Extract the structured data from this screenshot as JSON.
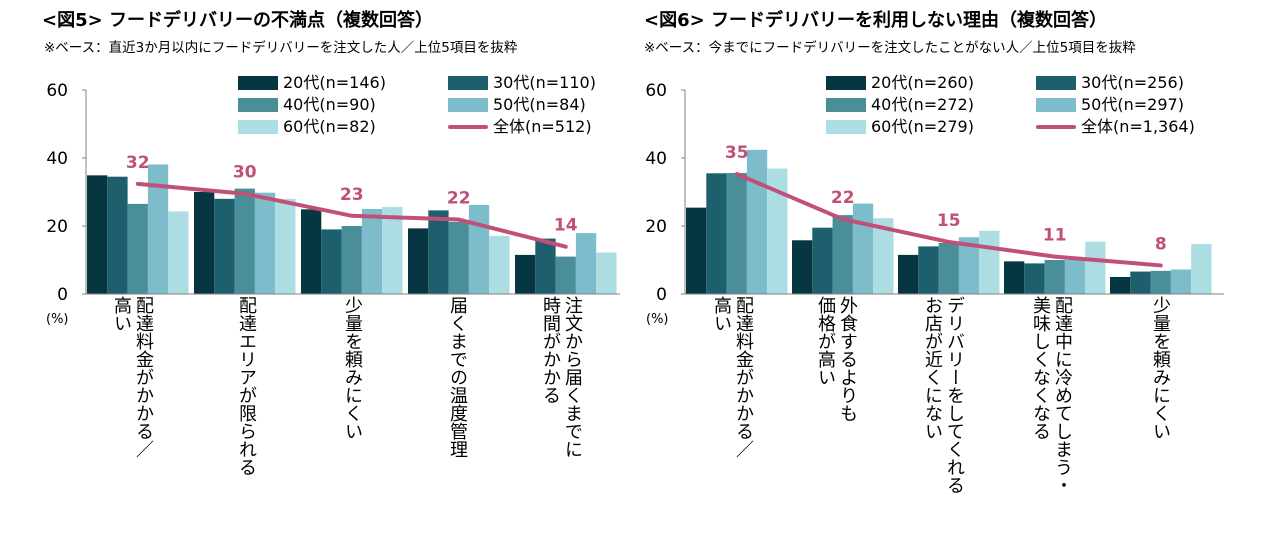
{
  "colors": {
    "series": [
      "#063642",
      "#1d5f6d",
      "#4a8e99",
      "#7dbccb",
      "#acdde3"
    ],
    "total": "#c05077",
    "axis": "#808080"
  },
  "left": {
    "title": "<図5> フードデリバリーの不満点（複数回答）",
    "subtitle": "※ベース：直近3か月以内にフードデリバリーを注文した人／上位5項目を抜粋",
    "pct_label": "(%)"
  },
  "right": {
    "title": "<図6> フードデリバリーを利用しない理由（複数回答）",
    "subtitle": "※ベース：今までにフードデリバリーを注文したことがない人／上位5項目を抜粋",
    "pct_label": "(%)"
  },
  "chart_data": [
    {
      "type": "bar",
      "title": "<図5> フードデリバリーの不満点（複数回答）",
      "ylabel": "(%)",
      "ylim": [
        0,
        60
      ],
      "yticks": [
        0,
        20,
        40,
        60
      ],
      "categories": [
        "配達料金がかかる／\n高い",
        "配達エリアが限られる",
        "少量を頼みにくい",
        "届くまでの温度管理",
        "注文から届くまでに\n時間がかかる"
      ],
      "series": [
        {
          "name": "20代(n=146)",
          "values": [
            34.9,
            30.0,
            24.9,
            19.3,
            11.5
          ]
        },
        {
          "name": "30代(n=110)",
          "values": [
            34.5,
            28.0,
            19.0,
            24.6,
            16.3
          ]
        },
        {
          "name": "40代(n=90)",
          "values": [
            26.5,
            31.0,
            20.0,
            21.2,
            11.0
          ]
        },
        {
          "name": "50代(n=84)",
          "values": [
            38.1,
            29.8,
            25.0,
            26.2,
            17.9
          ]
        },
        {
          "name": "60代(n=82)",
          "values": [
            24.3,
            28.0,
            25.6,
            17.1,
            12.2
          ]
        }
      ],
      "total": {
        "name": "全体(n=512)",
        "values": [
          32.4,
          29.5,
          23.0,
          21.9,
          13.9
        ],
        "labels": [
          "32",
          "30",
          "23",
          "22",
          "14"
        ]
      }
    },
    {
      "type": "bar",
      "title": "<図6> フードデリバリーを利用しない理由（複数回答）",
      "ylabel": "(%)",
      "ylim": [
        0,
        60
      ],
      "yticks": [
        0,
        20,
        40,
        60
      ],
      "categories": [
        "配達料金がかかる／\n高い",
        "外食するよりも\n価格が高い",
        "デリバリーをしてくれる\nお店が近くにない",
        "配達中に冷めてしまう・\n美味しくなくなる",
        "少量を頼みにくい"
      ],
      "series": [
        {
          "name": "20代(n=260)",
          "values": [
            25.4,
            15.8,
            11.5,
            9.6,
            5.0
          ]
        },
        {
          "name": "30代(n=256)",
          "values": [
            35.5,
            19.5,
            14.0,
            9.0,
            6.6
          ]
        },
        {
          "name": "40代(n=272)",
          "values": [
            35.6,
            23.2,
            15.0,
            10.0,
            6.8
          ]
        },
        {
          "name": "50代(n=297)",
          "values": [
            42.4,
            26.6,
            16.7,
            10.1,
            7.2
          ]
        },
        {
          "name": "60代(n=279)",
          "values": [
            36.9,
            22.3,
            18.6,
            15.4,
            14.7
          ]
        }
      ],
      "total": {
        "name": "全体(n=1,364)",
        "values": [
          35.3,
          22.0,
          15.3,
          11.0,
          8.4
        ],
        "labels": [
          "35",
          "22",
          "15",
          "11",
          "8"
        ]
      }
    }
  ]
}
